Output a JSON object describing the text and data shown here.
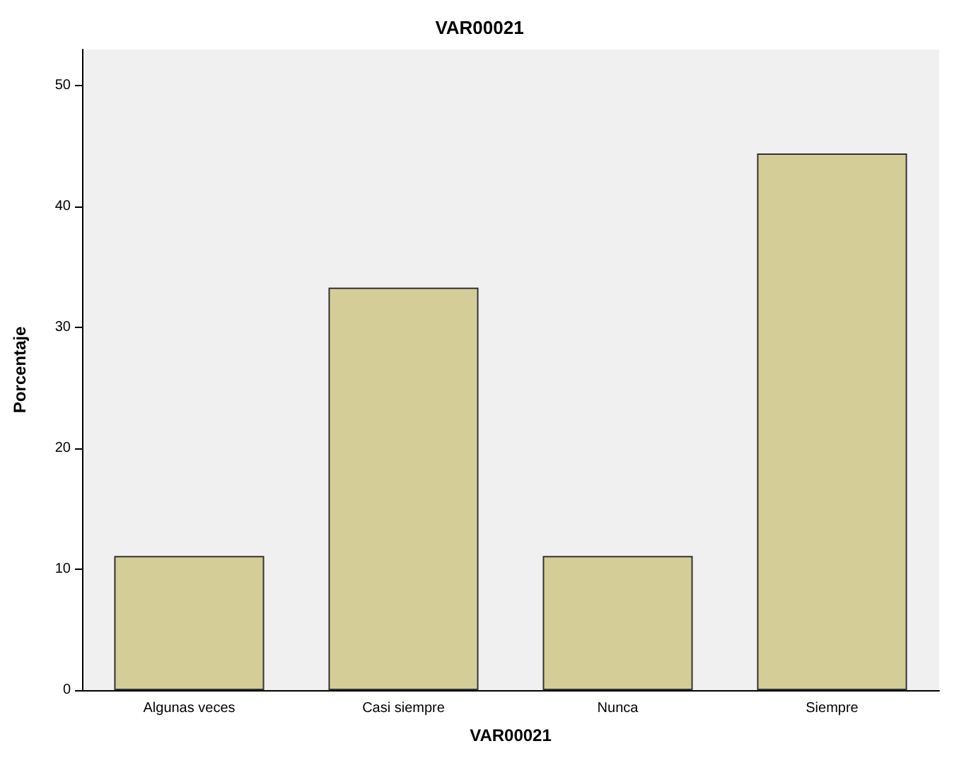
{
  "chart_data": {
    "type": "bar",
    "title": "VAR00021",
    "xlabel": "VAR00021",
    "ylabel": "Porcentaje",
    "categories": [
      "Algunas veces",
      "Casi siempre",
      "Nunca",
      "Siempre"
    ],
    "values": [
      11.1,
      33.3,
      11.1,
      44.4
    ],
    "color": "#d4cd98",
    "ylim": [
      0,
      53
    ],
    "yticks": [
      0,
      10,
      20,
      30,
      40,
      50
    ],
    "grid": false
  }
}
